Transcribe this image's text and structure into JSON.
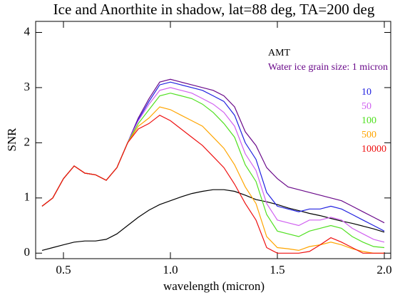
{
  "chart_data": {
    "type": "line",
    "title": "Ice and Anorthite in shadow, lat=88 deg, TA=200 deg",
    "xlabel": "wavelength (micron)",
    "ylabel": "SNR",
    "x": [
      0.4,
      0.45,
      0.5,
      0.55,
      0.6,
      0.65,
      0.7,
      0.75,
      0.8,
      0.85,
      0.9,
      0.95,
      1.0,
      1.05,
      1.1,
      1.15,
      1.2,
      1.25,
      1.3,
      1.35,
      1.4,
      1.45,
      1.5,
      1.55,
      1.6,
      1.65,
      1.7,
      1.75,
      1.8,
      1.85,
      1.9,
      1.95,
      2.0
    ],
    "series": [
      {
        "name": "AMT",
        "color": "#000000",
        "values": [
          0.05,
          0.1,
          0.15,
          0.2,
          0.22,
          0.22,
          0.25,
          0.35,
          0.5,
          0.65,
          0.78,
          0.88,
          0.95,
          1.02,
          1.08,
          1.12,
          1.15,
          1.15,
          1.12,
          1.05,
          0.97,
          0.93,
          0.88,
          0.82,
          0.77,
          0.72,
          0.68,
          0.63,
          0.58,
          0.54,
          0.49,
          0.44,
          0.38
        ]
      },
      {
        "name": "Water ice grain size: 1 micron",
        "color": "#6a0a8a",
        "values": [
          0.85,
          1.0,
          1.35,
          1.58,
          1.45,
          1.42,
          1.32,
          1.55,
          2.0,
          2.45,
          2.8,
          3.1,
          3.15,
          3.1,
          3.05,
          3.0,
          2.95,
          2.85,
          2.65,
          2.2,
          1.95,
          1.55,
          1.35,
          1.2,
          1.15,
          1.1,
          1.05,
          1.0,
          0.95,
          0.85,
          0.75,
          0.65,
          0.55
        ]
      },
      {
        "name": "10",
        "color": "#2020e0",
        "values": [
          0.85,
          1.0,
          1.35,
          1.58,
          1.45,
          1.42,
          1.32,
          1.55,
          2.0,
          2.42,
          2.75,
          3.05,
          3.1,
          3.05,
          3.0,
          2.95,
          2.85,
          2.75,
          2.5,
          2.0,
          1.7,
          1.1,
          0.85,
          0.8,
          0.75,
          0.8,
          0.8,
          0.85,
          0.8,
          0.7,
          0.6,
          0.5,
          0.4
        ]
      },
      {
        "name": "50",
        "color": "#d060f0",
        "values": [
          0.85,
          1.0,
          1.35,
          1.58,
          1.45,
          1.42,
          1.32,
          1.55,
          2.0,
          2.4,
          2.7,
          2.95,
          3.0,
          2.95,
          2.9,
          2.8,
          2.7,
          2.55,
          2.3,
          1.8,
          1.5,
          0.9,
          0.6,
          0.55,
          0.5,
          0.6,
          0.6,
          0.65,
          0.6,
          0.45,
          0.35,
          0.25,
          0.2
        ]
      },
      {
        "name": "100",
        "color": "#50e020",
        "values": [
          0.85,
          1.0,
          1.35,
          1.58,
          1.45,
          1.42,
          1.32,
          1.55,
          2.0,
          2.35,
          2.6,
          2.85,
          2.9,
          2.85,
          2.8,
          2.7,
          2.55,
          2.35,
          2.1,
          1.6,
          1.3,
          0.7,
          0.4,
          0.35,
          0.3,
          0.4,
          0.45,
          0.5,
          0.45,
          0.3,
          0.2,
          0.12,
          0.1
        ]
      },
      {
        "name": "500",
        "color": "#ffa500",
        "values": [
          0.85,
          1.0,
          1.35,
          1.58,
          1.45,
          1.42,
          1.32,
          1.55,
          2.0,
          2.3,
          2.45,
          2.65,
          2.6,
          2.5,
          2.4,
          2.3,
          2.1,
          1.9,
          1.6,
          1.2,
          0.9,
          0.3,
          0.1,
          0.08,
          0.05,
          0.12,
          0.15,
          0.2,
          0.15,
          0.08,
          0.03,
          0.0,
          0.0
        ]
      },
      {
        "name": "10000",
        "color": "#ee1010",
        "values": [
          0.85,
          1.0,
          1.35,
          1.58,
          1.45,
          1.42,
          1.32,
          1.55,
          2.0,
          2.25,
          2.35,
          2.5,
          2.4,
          2.25,
          2.1,
          1.95,
          1.75,
          1.55,
          1.25,
          0.9,
          0.6,
          0.1,
          0.0,
          0.0,
          0.0,
          0.03,
          0.15,
          0.28,
          0.2,
          0.1,
          0.0,
          0.0,
          0.0
        ]
      }
    ],
    "xlim": [
      0.37,
      2.03
    ],
    "ylim": [
      -0.1,
      4.2
    ],
    "xticks": [
      0.5,
      {
        "value": 1.0,
        "label": "1.0"
      },
      1.5,
      {
        "value": 2.0,
        "label": "2.0"
      }
    ],
    "yticks": [
      0,
      1,
      2,
      3,
      4
    ]
  }
}
